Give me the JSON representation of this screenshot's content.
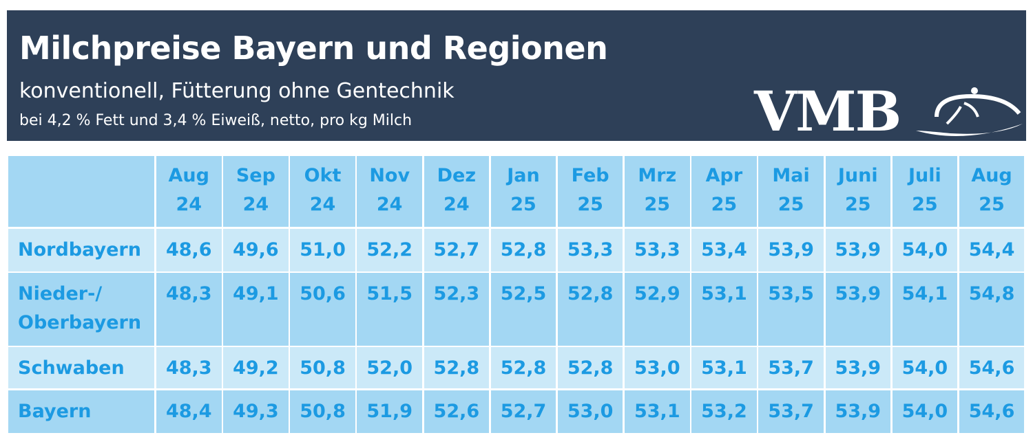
{
  "header": {
    "title": "Milchpreise Bayern und Regionen",
    "subtitle": "konventionell, Fütterung ohne Gentechnik",
    "note": "bei 4,2 % Fett und 3,4 % Eiweiß, netto, pro kg Milch",
    "logo": "VMB"
  },
  "table": {
    "columns": [
      "Aug\n24",
      "Sep\n24",
      "Okt\n24",
      "Nov\n24",
      "Dez\n24",
      "Jan\n25",
      "Feb\n25",
      "Mrz\n25",
      "Apr\n25",
      "Mai\n25",
      "Juni\n25",
      "Juli\n25",
      "Aug\n25"
    ],
    "rows": [
      [
        "Nordbayern",
        "48,6",
        "49,6",
        "51,0",
        "52,2",
        "52,7",
        "52,8",
        "53,3",
        "53,3",
        "53,4",
        "53,9",
        "53,9",
        "54,0",
        "54,4"
      ],
      [
        "Nieder-/\nOberbayern",
        "48,3",
        "49,1",
        "50,6",
        "51,5",
        "52,3",
        "52,5",
        "52,8",
        "52,9",
        "53,1",
        "53,5",
        "53,9",
        "54,1",
        "54,8"
      ],
      [
        "Schwaben",
        "48,3",
        "49,2",
        "50,8",
        "52,0",
        "52,8",
        "52,8",
        "52,8",
        "53,0",
        "53,1",
        "53,7",
        "53,9",
        "54,0",
        "54,6"
      ],
      [
        "Bayern",
        "48,4",
        "49,3",
        "50,8",
        "51,9",
        "52,6",
        "52,7",
        "53,0",
        "53,1",
        "53,2",
        "53,7",
        "53,9",
        "54,0",
        "54,6"
      ]
    ]
  }
}
